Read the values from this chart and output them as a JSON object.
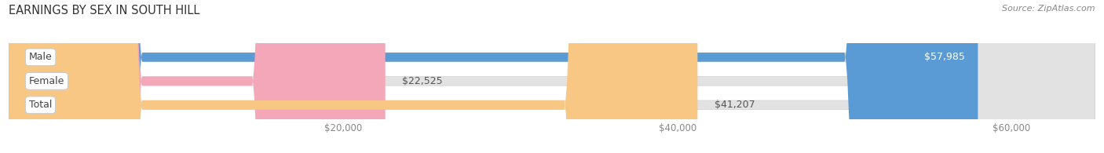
{
  "title": "EARNINGS BY SEX IN SOUTH HILL",
  "source": "Source: ZipAtlas.com",
  "categories": [
    "Male",
    "Female",
    "Total"
  ],
  "values": [
    57985,
    22525,
    41207
  ],
  "bar_colors": [
    "#5b9bd5",
    "#f4a7b9",
    "#f9c784"
  ],
  "bar_bg_color": "#e2e2e2",
  "value_labels": [
    "$57,985",
    "$22,525",
    "$41,207"
  ],
  "value_label_inside": [
    true,
    false,
    false
  ],
  "xmin": 0,
  "xmax": 65000,
  "xticks": [
    20000,
    40000,
    60000
  ],
  "xtick_labels": [
    "$20,000",
    "$40,000",
    "$60,000"
  ],
  "fig_bg_color": "#ffffff",
  "title_fontsize": 10.5,
  "bar_height": 0.38,
  "figsize": [
    14.06,
    1.95
  ],
  "dpi": 100
}
